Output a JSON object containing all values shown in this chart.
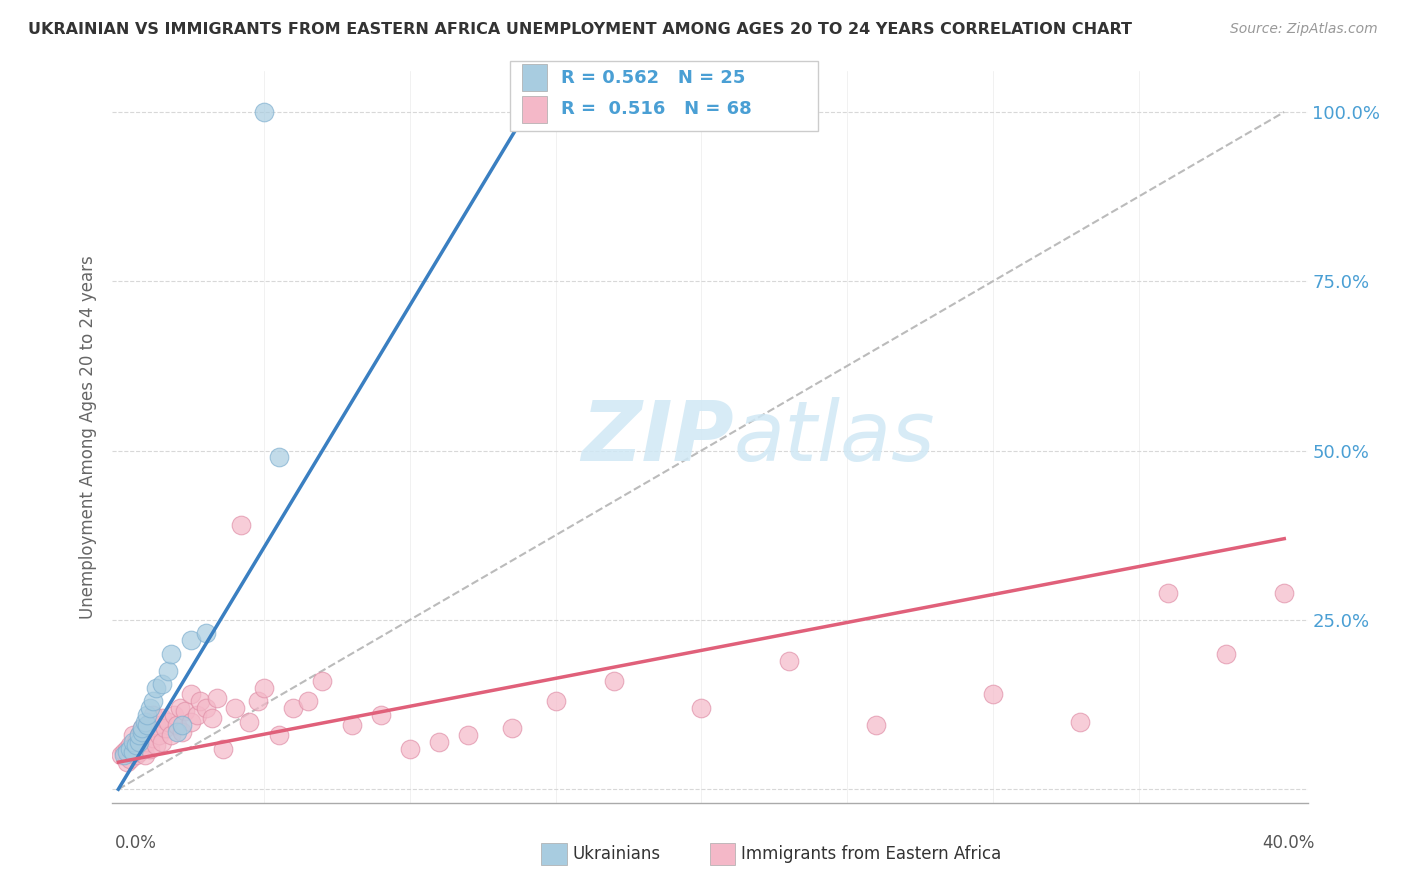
{
  "title": "UKRAINIAN VS IMMIGRANTS FROM EASTERN AFRICA UNEMPLOYMENT AMONG AGES 20 TO 24 YEARS CORRELATION CHART",
  "source": "Source: ZipAtlas.com",
  "ylabel": "Unemployment Among Ages 20 to 24 years",
  "legend1_R": "0.562",
  "legend1_N": "25",
  "legend2_R": "0.516",
  "legend2_N": "68",
  "legend_label1": "Ukrainians",
  "legend_label2": "Immigrants from Eastern Africa",
  "blue_color": "#a8cce0",
  "pink_color": "#f4b8c8",
  "blue_line_color": "#3a7fc1",
  "pink_line_color": "#e0607a",
  "watermark_color": "#d0e8f5",
  "blue_scatter_x": [
    0.002,
    0.003,
    0.004,
    0.005,
    0.005,
    0.006,
    0.007,
    0.007,
    0.008,
    0.008,
    0.009,
    0.01,
    0.01,
    0.011,
    0.012,
    0.013,
    0.015,
    0.017,
    0.018,
    0.02,
    0.022,
    0.025,
    0.03,
    0.055,
    0.05
  ],
  "blue_scatter_y": [
    0.05,
    0.055,
    0.06,
    0.055,
    0.07,
    0.065,
    0.07,
    0.08,
    0.085,
    0.09,
    0.1,
    0.095,
    0.11,
    0.12,
    0.13,
    0.15,
    0.155,
    0.175,
    0.2,
    0.085,
    0.095,
    0.22,
    0.23,
    0.49,
    1.0
  ],
  "pink_scatter_x": [
    0.001,
    0.002,
    0.003,
    0.003,
    0.004,
    0.004,
    0.005,
    0.005,
    0.006,
    0.006,
    0.007,
    0.007,
    0.008,
    0.008,
    0.009,
    0.009,
    0.01,
    0.01,
    0.011,
    0.011,
    0.012,
    0.012,
    0.013,
    0.013,
    0.014,
    0.015,
    0.015,
    0.016,
    0.017,
    0.018,
    0.019,
    0.02,
    0.021,
    0.022,
    0.023,
    0.025,
    0.025,
    0.027,
    0.028,
    0.03,
    0.032,
    0.034,
    0.036,
    0.04,
    0.042,
    0.045,
    0.048,
    0.05,
    0.055,
    0.06,
    0.065,
    0.07,
    0.08,
    0.09,
    0.1,
    0.11,
    0.12,
    0.135,
    0.15,
    0.17,
    0.2,
    0.23,
    0.26,
    0.3,
    0.33,
    0.36,
    0.38,
    0.4
  ],
  "pink_scatter_y": [
    0.05,
    0.055,
    0.06,
    0.04,
    0.065,
    0.045,
    0.055,
    0.08,
    0.05,
    0.07,
    0.055,
    0.08,
    0.06,
    0.09,
    0.05,
    0.075,
    0.07,
    0.09,
    0.06,
    0.1,
    0.075,
    0.11,
    0.065,
    0.095,
    0.08,
    0.07,
    0.105,
    0.09,
    0.1,
    0.08,
    0.11,
    0.095,
    0.12,
    0.085,
    0.115,
    0.1,
    0.14,
    0.11,
    0.13,
    0.12,
    0.105,
    0.135,
    0.06,
    0.12,
    0.39,
    0.1,
    0.13,
    0.15,
    0.08,
    0.12,
    0.13,
    0.16,
    0.095,
    0.11,
    0.06,
    0.07,
    0.08,
    0.09,
    0.13,
    0.16,
    0.12,
    0.19,
    0.095,
    0.14,
    0.1,
    0.29,
    0.2,
    0.29
  ],
  "blue_line_x": [
    0.0,
    0.14
  ],
  "blue_line_y": [
    0.0,
    1.0
  ],
  "pink_line_x": [
    0.0,
    0.4
  ],
  "pink_line_y": [
    0.04,
    0.37
  ],
  "diag_line_x": [
    0.0,
    0.4
  ],
  "diag_line_y": [
    0.0,
    1.0
  ],
  "xlim": [
    -0.002,
    0.408
  ],
  "ylim": [
    -0.02,
    1.06
  ],
  "ytick_vals": [
    0.0,
    0.25,
    0.5,
    0.75,
    1.0
  ],
  "ytick_labels": [
    "",
    "25.0%",
    "50.0%",
    "75.0%",
    "100.0%"
  ]
}
